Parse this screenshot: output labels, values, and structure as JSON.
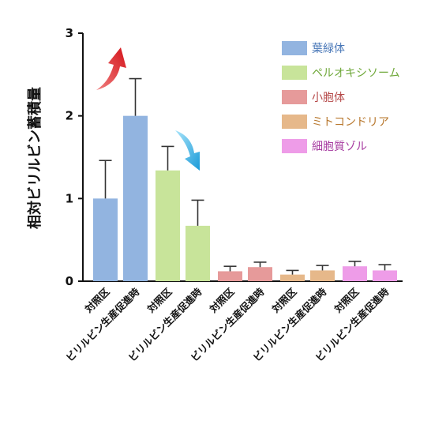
{
  "chart_data": {
    "type": "bar",
    "ylabel": "相対ビリルビン蓄積量",
    "ylim": [
      0,
      3
    ],
    "yticks": [
      "0",
      "1",
      "2",
      "3"
    ],
    "grid": false,
    "legend_position": "top-right",
    "groups": [
      {
        "name": "葉緑体",
        "color": "#92b4e0",
        "legend_text_color": "#4a78b8",
        "bars": [
          {
            "label": "対照区",
            "value": 1.0,
            "error": 0.46
          },
          {
            "label": "ビリルビン生産促進時",
            "value": 2.0,
            "error": 0.45
          }
        ]
      },
      {
        "name": "ペルオキシソーム",
        "color": "#c8e49a",
        "legend_text_color": "#6fa83a",
        "bars": [
          {
            "label": "対照区",
            "value": 1.34,
            "error": 0.29
          },
          {
            "label": "ビリルビン生産促進時",
            "value": 0.67,
            "error": 0.31
          }
        ]
      },
      {
        "name": "小胞体",
        "color": "#e69a9a",
        "legend_text_color": "#b54848",
        "bars": [
          {
            "label": "対照区",
            "value": 0.12,
            "error": 0.06
          },
          {
            "label": "ビリルビン生産促進時",
            "value": 0.17,
            "error": 0.06
          }
        ]
      },
      {
        "name": "ミトコンドリア",
        "color": "#e6b88a",
        "legend_text_color": "#b8782e",
        "bars": [
          {
            "label": "対照区",
            "value": 0.08,
            "error": 0.05
          },
          {
            "label": "ビリルビン生産促進時",
            "value": 0.13,
            "error": 0.06
          }
        ]
      },
      {
        "name": "細胞質ゾル",
        "color": "#ee9ce8",
        "legend_text_color": "#a63aa0",
        "bars": [
          {
            "label": "対照区",
            "value": 0.18,
            "error": 0.06
          },
          {
            "label": "ビリルビン生産促進時",
            "value": 0.13,
            "error": 0.07
          }
        ]
      }
    ]
  }
}
